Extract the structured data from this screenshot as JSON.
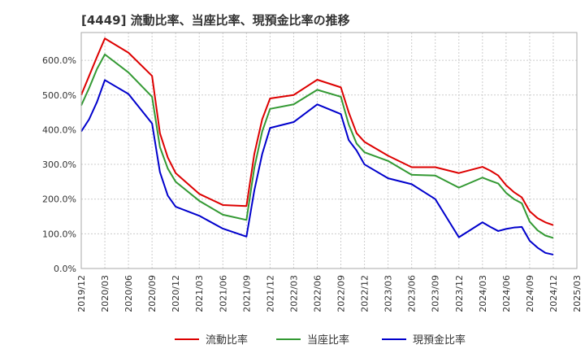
{
  "chart_data": {
    "type": "line",
    "title": "[4449]  流動比率、当座比率、現預金比率の推移",
    "xlabel": "",
    "ylabel": "",
    "ylim": [
      0,
      680
    ],
    "yticks": [
      0,
      100,
      200,
      300,
      400,
      500,
      600
    ],
    "ytick_labels": [
      "0.0%",
      "100.0%",
      "200.0%",
      "300.0%",
      "400.0%",
      "500.0%",
      "600.0%"
    ],
    "xtick_labels": [
      "2019/12",
      "2020/03",
      "2020/06",
      "2020/09",
      "2020/12",
      "2021/03",
      "2021/06",
      "2021/09",
      "2021/12",
      "2022/03",
      "2022/06",
      "2022/09",
      "2022/12",
      "2023/03",
      "2023/06",
      "2023/09",
      "2023/12",
      "2024/03",
      "2024/06",
      "2024/09",
      "2024/12",
      "2025/03"
    ],
    "x_range_months": [
      0,
      63
    ],
    "x": [
      0,
      1,
      2,
      3,
      4,
      5,
      6,
      7,
      8,
      9,
      10,
      11,
      12,
      13,
      14,
      15,
      16,
      17,
      18,
      19,
      20,
      21,
      22,
      23,
      24,
      25,
      26,
      27,
      28,
      29,
      30,
      31,
      32,
      33,
      34,
      35,
      36,
      37,
      38,
      39,
      40,
      41,
      42,
      43,
      44,
      45,
      46,
      47,
      48,
      49,
      50,
      51,
      52,
      53,
      54,
      55,
      56,
      57,
      58,
      59,
      60
    ],
    "series": [
      {
        "name": "流動比率",
        "color": "#dd0000",
        "x": [
          0,
          1,
          2,
          3,
          6,
          9,
          10,
          11,
          12,
          15,
          18,
          21,
          22,
          23,
          24,
          27,
          30,
          33,
          34,
          35,
          36,
          39,
          42,
          45,
          48,
          51,
          52,
          53,
          54,
          55,
          56,
          57,
          58,
          59,
          60
        ],
        "values": [
          500,
          555,
          610,
          663,
          622,
          555,
          390,
          320,
          275,
          215,
          183,
          180,
          330,
          430,
          490,
          500,
          544,
          522,
          450,
          390,
          365,
          325,
          292,
          292,
          275,
          293,
          282,
          268,
          240,
          220,
          205,
          165,
          145,
          133,
          125
        ]
      },
      {
        "name": "当座比率",
        "color": "#339933",
        "x": [
          0,
          1,
          2,
          3,
          6,
          9,
          10,
          11,
          12,
          15,
          18,
          21,
          22,
          23,
          24,
          27,
          30,
          33,
          34,
          35,
          36,
          39,
          42,
          45,
          48,
          51,
          52,
          53,
          54,
          55,
          56,
          57,
          58,
          59,
          60
        ],
        "values": [
          470,
          520,
          575,
          617,
          565,
          495,
          350,
          288,
          250,
          195,
          155,
          140,
          290,
          395,
          460,
          473,
          515,
          495,
          415,
          360,
          335,
          310,
          270,
          268,
          233,
          262,
          253,
          245,
          218,
          200,
          188,
          135,
          110,
          95,
          88
        ]
      },
      {
        "name": "現預金比率",
        "color": "#0000cc",
        "x": [
          0,
          1,
          2,
          3,
          6,
          9,
          10,
          11,
          12,
          15,
          18,
          21,
          22,
          23,
          24,
          27,
          30,
          33,
          34,
          35,
          36,
          39,
          42,
          45,
          48,
          51,
          52,
          53,
          54,
          55,
          56,
          57,
          58,
          59,
          60
        ],
        "values": [
          395,
          430,
          480,
          543,
          503,
          418,
          278,
          210,
          178,
          152,
          115,
          92,
          225,
          330,
          405,
          422,
          473,
          445,
          370,
          340,
          300,
          260,
          243,
          200,
          90,
          133,
          120,
          108,
          114,
          118,
          120,
          80,
          60,
          45,
          40
        ]
      }
    ],
    "legend": [
      "流動比率",
      "当座比率",
      "現預金比率"
    ],
    "legend_position": "bottom-center",
    "grid": true
  }
}
